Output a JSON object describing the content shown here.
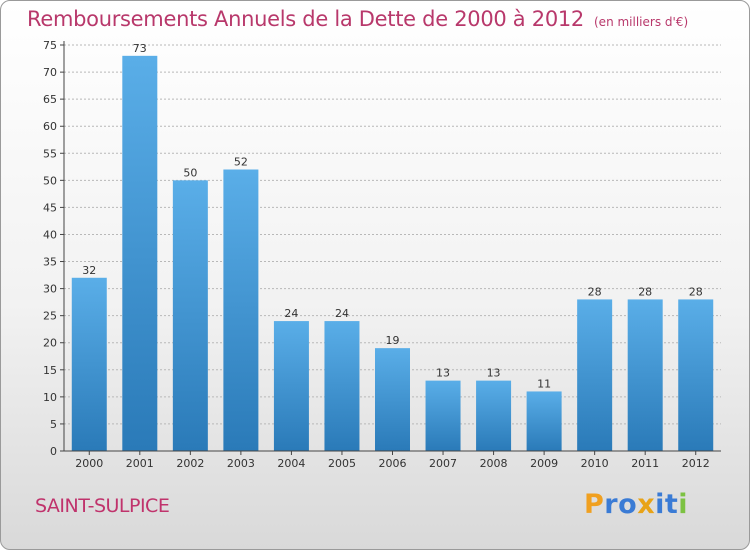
{
  "title": "Remboursements Annuels de la Dette de 2000 à 2012",
  "unit": "(en milliers d'€)",
  "commune": "SAINT-SULPICE",
  "logo": {
    "text": "Proxiti",
    "letters": [
      "P",
      "r",
      "o",
      "x",
      "i",
      "t",
      "i"
    ]
  },
  "colors": {
    "title": "#b8386b",
    "bar_light": "#5aaee8",
    "bar_dark": "#2a7ab8",
    "logo_letters": [
      "#f0a020",
      "#3a7bd5",
      "#3a7bd5",
      "#e8a317",
      "#3a7bd5",
      "#3a7bd5",
      "#7cc242"
    ]
  },
  "chart_data": {
    "type": "bar",
    "categories": [
      "2000",
      "2001",
      "2002",
      "2003",
      "2004",
      "2005",
      "2006",
      "2007",
      "2008",
      "2009",
      "2010",
      "2011",
      "2012"
    ],
    "values": [
      32,
      73,
      50,
      52,
      24,
      24,
      19,
      13,
      13,
      11,
      28,
      28,
      28
    ],
    "title": "Remboursements Annuels de la Dette de 2000 à 2012",
    "ylim": [
      0,
      75
    ],
    "yticks": [
      0,
      5,
      10,
      15,
      20,
      25,
      30,
      35,
      40,
      45,
      50,
      55,
      60,
      65,
      70,
      75
    ],
    "grid": true,
    "data_labels": true
  }
}
